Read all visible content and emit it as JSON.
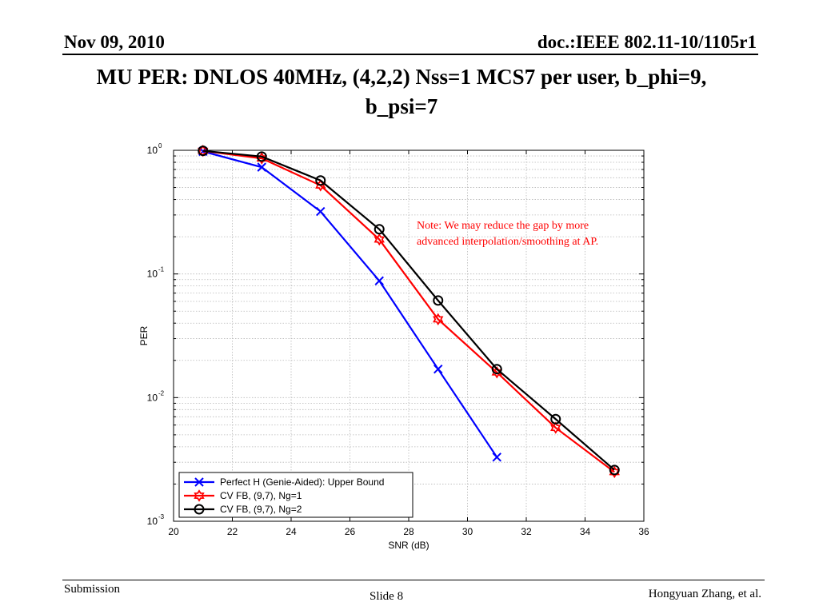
{
  "header": {
    "date": "Nov 09, 2010",
    "doc_id": "doc.:IEEE 802.11-10/1105r1"
  },
  "slide": {
    "title_line1": "MU PER: DNLOS 40MHz, (4,2,2) Nss=1 MCS7 per user, b_phi=9,",
    "title_line2": "b_psi=7"
  },
  "footer": {
    "left": "Submission",
    "center": "Slide 8",
    "right": "Hongyuan Zhang, et al."
  },
  "chart_data": {
    "type": "line",
    "title": "",
    "xlabel": "SNR (dB)",
    "ylabel": "PER",
    "xlim": [
      20,
      36
    ],
    "ylim": [
      0.001,
      1
    ],
    "yscale": "log",
    "grid": true,
    "x_ticks": [
      20,
      22,
      24,
      26,
      28,
      30,
      32,
      34,
      36
    ],
    "y_ticks": [
      {
        "base": "10",
        "exp": "0",
        "value": 1
      },
      {
        "base": "10",
        "exp": "-1",
        "value": 0.1
      },
      {
        "base": "10",
        "exp": "-2",
        "value": 0.01
      },
      {
        "base": "10",
        "exp": "-3",
        "value": 0.001
      }
    ],
    "legend_position": "bottom-left",
    "annotation": {
      "line1": "Note: We may reduce the gap by more",
      "line2": "advanced interpolation/smoothing at AP."
    },
    "series": [
      {
        "name": "Perfect H (Genie-Aided): Upper Bound",
        "color": "#0000ff",
        "marker": "x",
        "x": [
          21,
          23,
          25,
          27,
          29,
          31
        ],
        "y": [
          0.98,
          0.73,
          0.32,
          0.088,
          0.017,
          0.0033
        ]
      },
      {
        "name": "CV FB, (9,7), Ng=1",
        "color": "#ff0000",
        "marker": "hexagram",
        "x": [
          21,
          23,
          25,
          27,
          29,
          31,
          33,
          35
        ],
        "y": [
          0.99,
          0.86,
          0.52,
          0.19,
          0.043,
          0.016,
          0.0057,
          0.0025
        ]
      },
      {
        "name": "CV FB, (9,7), Ng=2",
        "color": "#000000",
        "marker": "o",
        "x": [
          21,
          23,
          25,
          27,
          29,
          31,
          33,
          35
        ],
        "y": [
          0.99,
          0.89,
          0.57,
          0.23,
          0.061,
          0.017,
          0.0067,
          0.0026
        ]
      }
    ]
  }
}
